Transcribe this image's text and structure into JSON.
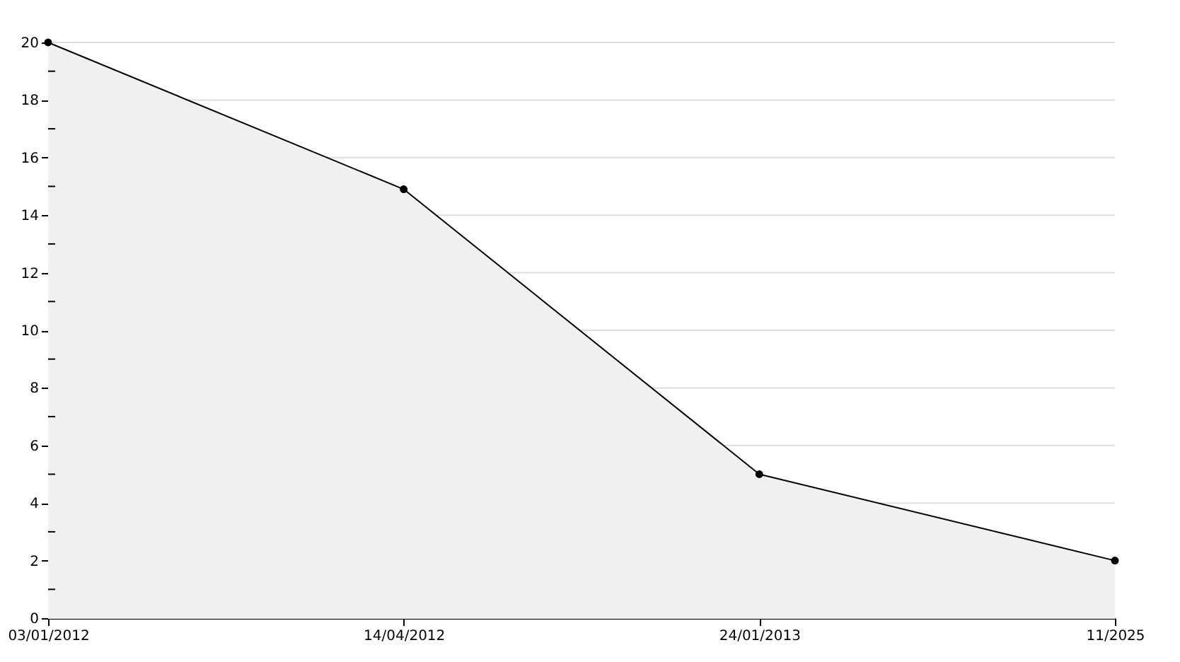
{
  "chart_data": {
    "type": "area",
    "categories": [
      "03/01/2012",
      "14/04/2012",
      "24/01/2013",
      "11/2025"
    ],
    "series": [
      {
        "color": "#f0f0f0",
        "values": [
          20,
          14.9,
          5,
          2
        ]
      }
    ],
    "ylim": [
      0,
      20
    ],
    "yticks": [
      0,
      {
        "value": 1,
        "label": null
      },
      2,
      {
        "value": 3,
        "label": null
      },
      4,
      {
        "value": 5,
        "label": null
      },
      6,
      {
        "value": 7,
        "label": null
      },
      8,
      {
        "value": 9,
        "label": null
      },
      10,
      {
        "value": 11,
        "label": null
      },
      12,
      {
        "value": 13,
        "label": null
      },
      14,
      {
        "value": 15,
        "label": null
      },
      16,
      {
        "value": 17,
        "label": null
      },
      18,
      {
        "value": 19,
        "label": null
      },
      20
    ],
    "grid": "y",
    "marker": "circle",
    "line_style": "solid"
  }
}
